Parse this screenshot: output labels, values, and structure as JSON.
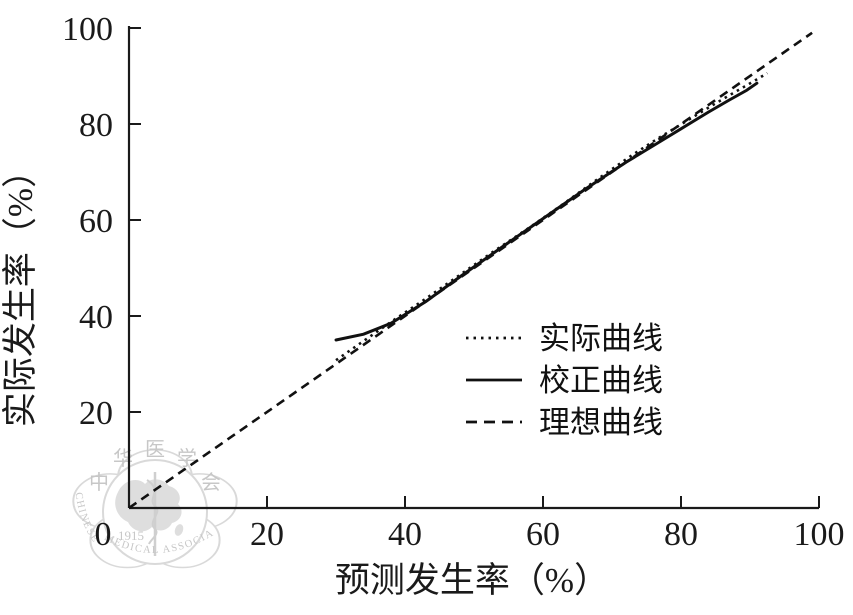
{
  "figure": {
    "background": "#ffffff",
    "line_color": "#111111",
    "watermark": {
      "name": "chinese-medical-association-seal",
      "chars": [
        "中",
        "华",
        "医",
        "学",
        "会"
      ],
      "year": "1915",
      "arc_text_bottom": "MEDICAL ASSOCIATION",
      "arc_text_left": "CHINESE",
      "color": "#d9d9d9"
    }
  },
  "axes": {
    "xlabel": "预测发生率（%）",
    "ylabel": "实际发生率（%）",
    "origin_label": "0",
    "x_tick_labels": [
      "20",
      "40",
      "60",
      "80",
      "100"
    ],
    "y_tick_labels": [
      "20",
      "40",
      "60",
      "80",
      "100"
    ]
  },
  "legend": {
    "position": "inside-lower-right",
    "items": [
      {
        "label": "实际曲线",
        "style": "dotted"
      },
      {
        "label": "校正曲线",
        "style": "solid"
      },
      {
        "label": "理想曲线",
        "style": "dashed"
      }
    ]
  },
  "chart_data": {
    "type": "line",
    "title": "",
    "xlabel": "预测发生率（%）",
    "ylabel": "实际发生率（%）",
    "xlim": [
      0,
      100
    ],
    "ylim": [
      0,
      100
    ],
    "x_ticks": [
      0,
      20,
      40,
      60,
      80,
      100
    ],
    "y_ticks": [
      0,
      20,
      40,
      60,
      80,
      100
    ],
    "grid": false,
    "legend_position": "inside lower-right",
    "series": [
      {
        "name": "实际曲线",
        "style": "dotted",
        "points": [
          [
            30,
            30.8
          ],
          [
            34,
            34.8
          ],
          [
            38,
            38.8
          ],
          [
            43,
            43.6
          ],
          [
            48,
            48.6
          ],
          [
            53,
            53.6
          ],
          [
            58,
            58.4
          ],
          [
            63,
            63.4
          ],
          [
            68,
            68.6
          ],
          [
            73,
            73.6
          ],
          [
            77,
            77.3
          ],
          [
            81,
            80.8
          ],
          [
            85,
            84.3
          ],
          [
            88,
            86.8
          ],
          [
            91,
            89.3
          ],
          [
            92.5,
            90.6
          ]
        ]
      },
      {
        "name": "校正曲线",
        "style": "solid",
        "points": [
          [
            30,
            35
          ],
          [
            34,
            36.2
          ],
          [
            38,
            38.5
          ],
          [
            43,
            43
          ],
          [
            48,
            48.2
          ],
          [
            54,
            54.3
          ],
          [
            60,
            60.3
          ],
          [
            66,
            66.3
          ],
          [
            72,
            72
          ],
          [
            76,
            75.5
          ],
          [
            80,
            79
          ],
          [
            84,
            82.5
          ],
          [
            87,
            85
          ],
          [
            89.5,
            87
          ],
          [
            91,
            88.5
          ]
        ]
      },
      {
        "name": "理想曲线",
        "style": "dashed",
        "points": [
          [
            0,
            0
          ],
          [
            99,
            99
          ]
        ]
      }
    ]
  }
}
